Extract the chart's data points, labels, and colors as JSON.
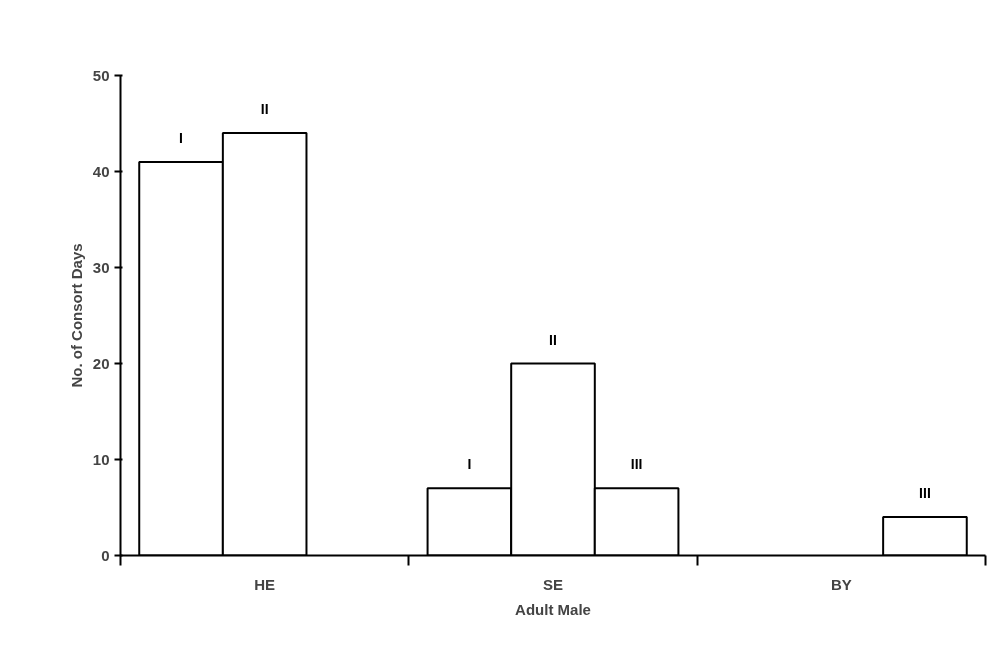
{
  "chart_data": {
    "type": "bar",
    "xlabel": "Adult Male",
    "ylabel": "No. of Consort Days",
    "categories": [
      "HE",
      "SE",
      "BY"
    ],
    "series": [
      {
        "name": "I",
        "color": "#ffffff",
        "values": [
          41,
          7,
          null
        ]
      },
      {
        "name": "II",
        "color": "#ffffff",
        "values": [
          44,
          20,
          null
        ]
      },
      {
        "name": "III",
        "color": "#ffffff",
        "values": [
          null,
          7,
          4
        ]
      }
    ],
    "ylim": [
      0,
      50
    ],
    "yticks": [
      0,
      10,
      20,
      30,
      40,
      50
    ],
    "grid": false
  }
}
